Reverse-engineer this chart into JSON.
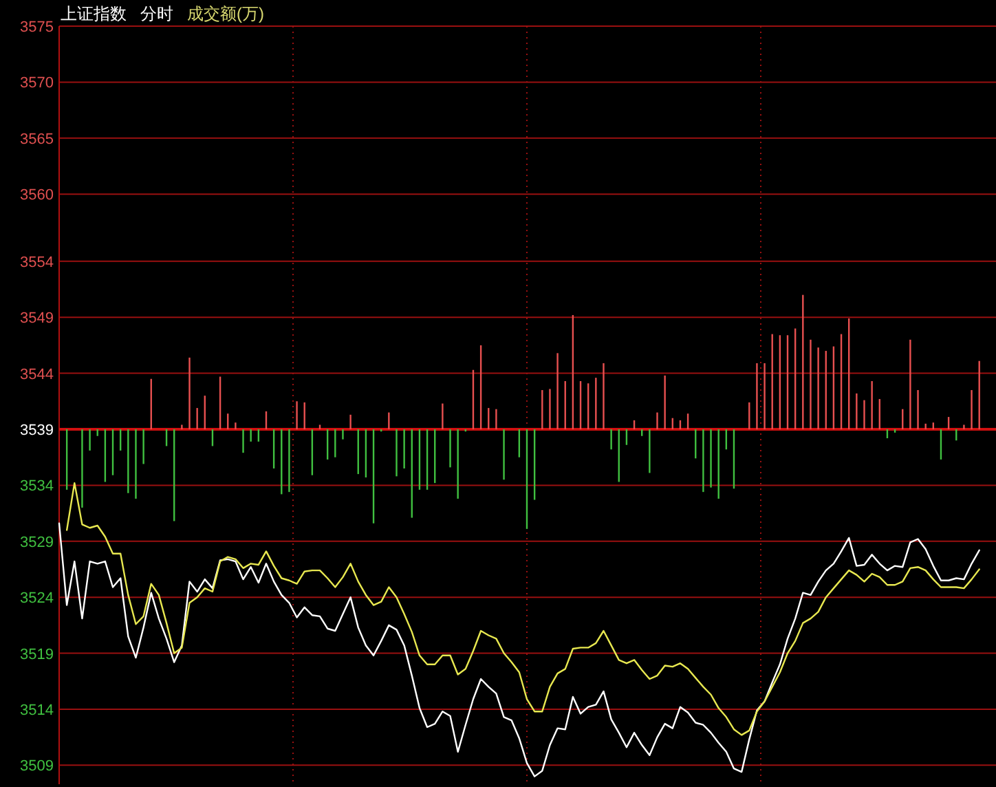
{
  "chart_data": {
    "type": "line",
    "title": "上证指数",
    "subtitle": "分时",
    "annotations": [
      "成交额(万)"
    ],
    "categories": [
      null,
      null,
      null,
      null,
      null,
      null,
      null,
      null,
      null,
      null,
      null,
      null,
      null,
      null,
      null,
      null,
      null,
      null,
      null,
      null,
      null,
      null,
      null,
      null,
      null,
      null,
      null,
      null,
      null,
      null,
      null,
      null,
      null,
      null,
      null,
      null,
      null,
      null,
      null,
      null,
      null,
      null,
      null,
      null,
      null,
      null,
      null,
      null,
      null,
      null,
      null,
      null,
      null,
      null,
      null,
      null,
      null,
      null,
      null,
      null,
      null,
      null,
      null,
      null,
      null,
      null,
      null,
      null,
      null,
      null,
      null,
      null,
      null,
      null,
      null,
      null,
      null,
      null,
      null,
      null,
      null,
      null,
      null,
      null,
      null,
      null,
      null,
      null,
      null,
      null,
      null,
      null,
      null,
      null,
      null,
      null,
      null,
      null,
      null,
      null,
      null,
      null,
      null,
      null,
      null,
      null,
      null,
      null,
      null,
      null,
      null,
      null,
      null,
      null,
      null,
      null,
      null,
      null,
      null,
      null,
      null
    ],
    "ylim": [
      3507.3,
      3575
    ],
    "yticks": [
      3509,
      3514,
      3519,
      3524,
      3529,
      3534,
      3539,
      3544,
      3549,
      3554,
      3560,
      3565,
      3570,
      3575
    ],
    "grid": true,
    "ref_lines": [
      {
        "axis": "y",
        "value": 3539,
        "color": "#d01010"
      }
    ],
    "series": [
      {
        "type": "bar",
        "base": [
          null,
          3539,
          null,
          3539,
          3539,
          3539,
          3539,
          3539,
          3539,
          3539,
          3539,
          3539,
          3539,
          null,
          3539,
          3539,
          3539,
          3539,
          3539,
          3539,
          3539,
          3539,
          3539,
          3539,
          3539,
          3539,
          3539,
          3539,
          3539,
          3539,
          3539,
          3539,
          3539,
          3539,
          3539,
          3539,
          3539,
          3539,
          3539,
          3539,
          3539,
          3539,
          3539,
          3539,
          3539,
          3539,
          3539,
          3539,
          3539,
          3539,
          3539,
          3539,
          3539,
          3539,
          3539,
          3539,
          3539,
          3539,
          3539,
          null,
          3539,
          3539,
          3539,
          3539,
          3539,
          3539,
          3539,
          3539,
          3539,
          3539,
          3539,
          3539,
          3539,
          3539,
          3539,
          3539,
          3539,
          3539,
          3539,
          3539,
          3539,
          3539,
          3539,
          3539,
          3539,
          3539,
          3539,
          3539,
          3539,
          null,
          3539,
          3539,
          3539,
          3539,
          3539,
          3539,
          3539,
          3539,
          3539,
          3539,
          3539,
          3539,
          3539,
          3539,
          3539,
          3539,
          3539,
          3539,
          3539,
          3539,
          3539,
          3539,
          3539,
          3539,
          3539,
          3539,
          3539,
          3539,
          3539,
          3539,
          3539
        ],
        "values": [
          null,
          -5.4,
          null,
          -7.0,
          -1.9,
          -0.6,
          -4.7,
          -4.1,
          -1.9,
          -5.7,
          -6.2,
          -3.1,
          4.5,
          null,
          -1.5,
          -8.2,
          0.4,
          6.4,
          1.9,
          3.0,
          -1.5,
          4.7,
          1.4,
          0.6,
          -2.1,
          -1.1,
          -1.1,
          1.6,
          -3.5,
          -5.8,
          -5.6,
          2.5,
          2.4,
          -4.1,
          0.4,
          -2.7,
          -2.5,
          -0.9,
          1.3,
          -4.0,
          -4.3,
          -8.4,
          -0.2,
          1.5,
          -4.2,
          -3.5,
          -7.9,
          -5.4,
          -5.4,
          -4.8,
          2.3,
          -3.4,
          -6.2,
          -0.2,
          5.3,
          7.5,
          1.9,
          1.8,
          -4.5,
          null,
          -2.5,
          -8.9,
          -6.3,
          3.5,
          3.6,
          6.8,
          4.3,
          10.2,
          4.3,
          4.1,
          4.6,
          5.9,
          -1.8,
          -4.7,
          -1.4,
          0.8,
          -0.6,
          -3.9,
          1.5,
          4.8,
          1.0,
          0.8,
          1.4,
          -2.6,
          -5.6,
          -5.2,
          -6.2,
          -1.8,
          -5.3,
          null,
          2.4,
          5.9,
          5.9,
          8.5,
          8.4,
          8.4,
          9.0,
          12.0,
          8.0,
          7.3,
          7.0,
          7.4,
          8.5,
          9.9,
          3.2,
          2.6,
          4.3,
          2.7,
          -0.8,
          -0.3,
          1.8,
          8.0,
          3.5,
          0.5,
          0.6,
          -2.7,
          1.1,
          -1.0,
          0.4,
          3.5,
          6.1
        ],
        "colors": [
          null,
          "#40c040",
          null,
          "#40c040",
          "#40c040",
          "#40c040",
          "#40c040",
          "#40c040",
          "#40c040",
          "#40c040",
          "#40c040",
          "#40c040",
          "#e85050",
          null,
          "#40c040",
          "#40c040",
          "#e85050",
          "#e85050",
          "#e85050",
          "#e85050",
          "#40c040",
          "#e85050",
          "#e85050",
          "#e85050",
          "#40c040",
          "#40c040",
          "#40c040",
          "#e85050",
          "#40c040",
          "#40c040",
          "#40c040",
          "#e85050",
          "#e85050",
          "#40c040",
          "#e85050",
          "#40c040",
          "#40c040",
          "#40c040",
          "#e85050",
          "#40c040",
          "#40c040",
          "#40c040",
          "#40c040",
          "#e85050",
          "#40c040",
          "#40c040",
          "#40c040",
          "#40c040",
          "#40c040",
          "#40c040",
          "#e85050",
          "#40c040",
          "#40c040",
          "#40c040",
          "#e85050",
          "#e85050",
          "#e85050",
          "#e85050",
          "#40c040",
          null,
          "#40c040",
          "#40c040",
          "#40c040",
          "#e85050",
          "#e85050",
          "#e85050",
          "#e85050",
          "#e85050",
          "#e85050",
          "#e85050",
          "#e85050",
          "#e85050",
          "#40c040",
          "#40c040",
          "#40c040",
          "#e85050",
          "#40c040",
          "#40c040",
          "#e85050",
          "#e85050",
          "#e85050",
          "#e85050",
          "#e85050",
          "#40c040",
          "#40c040",
          "#40c040",
          "#40c040",
          "#40c040",
          "#40c040",
          null,
          "#e85050",
          "#e85050",
          "#e85050",
          "#e85050",
          "#e85050",
          "#e85050",
          "#e85050",
          "#e85050",
          "#e85050",
          "#e85050",
          "#e85050",
          "#e85050",
          "#e85050",
          "#e85050",
          "#e85050",
          "#e85050",
          "#e85050",
          "#e85050",
          "#40c040",
          "#40c040",
          "#e85050",
          "#e85050",
          "#e85050",
          "#e85050",
          "#e85050",
          "#40c040",
          "#e85050",
          "#40c040",
          "#e85050",
          "#e85050",
          "#e85050"
        ]
      },
      {
        "color": "#ffffff",
        "values": [
          3530.6,
          3523.3,
          3527.2,
          3522.1,
          3527.2,
          3527.0,
          3527.2,
          3524.9,
          3525.7,
          3520.5,
          3518.6,
          3521.3,
          3524.4,
          3522.1,
          3520.3,
          3518.2,
          3519.7,
          3525.4,
          3524.5,
          3525.6,
          3524.8,
          3527.3,
          3527.4,
          3527.2,
          3525.6,
          3526.7,
          3525.3,
          3527.0,
          3525.4,
          3524.2,
          3523.5,
          3522.2,
          3523.1,
          3522.4,
          3522.3,
          3521.2,
          3521.0,
          3522.5,
          3524.0,
          3521.3,
          3519.7,
          3518.8,
          3520.1,
          3521.5,
          3521.1,
          3519.7,
          3517.0,
          3514.1,
          3512.4,
          3512.7,
          3513.8,
          3513.4,
          3510.2,
          3512.6,
          3514.9,
          3516.7,
          3516.0,
          3515.4,
          3513.3,
          3513.0,
          3511.4,
          3509.2,
          3508.0,
          3508.5,
          3510.8,
          3512.3,
          3512.2,
          3515.1,
          3513.6,
          3514.2,
          3514.4,
          3515.6,
          3513.1,
          3511.9,
          3510.6,
          3511.9,
          3510.8,
          3509.9,
          3511.5,
          3512.7,
          3512.3,
          3514.2,
          3513.7,
          3512.8,
          3512.6,
          3511.9,
          3511.0,
          3510.2,
          3508.7,
          3508.4,
          3511.3,
          3513.9,
          3514.7,
          3516.4,
          3518.0,
          3520.3,
          3522.1,
          3524.4,
          3524.2,
          3525.4,
          3526.4,
          3527.0,
          3528.1,
          3529.3,
          3526.8,
          3526.9,
          3527.8,
          3527.0,
          3526.4,
          3526.8,
          3526.7,
          3528.9,
          3529.2,
          3528.3,
          3526.8,
          3525.5,
          3525.5,
          3525.7,
          3525.6,
          3527.0,
          3528.2
        ]
      },
      {
        "color": "#e8e850",
        "values": [
          null,
          3530.0,
          3534.2,
          3530.5,
          3530.2,
          3530.4,
          3529.4,
          3527.9,
          3527.9,
          3524.2,
          3521.6,
          3522.3,
          3525.2,
          3524.2,
          3521.7,
          3519.0,
          3519.5,
          3523.5,
          3524.0,
          3524.8,
          3524.5,
          3527.2,
          3527.6,
          3527.4,
          3526.6,
          3527.0,
          3526.9,
          3528.1,
          3526.8,
          3525.7,
          3525.5,
          3525.2,
          3526.3,
          3526.4,
          3526.4,
          3525.7,
          3524.9,
          3525.8,
          3527.0,
          3525.4,
          3524.2,
          3523.3,
          3523.6,
          3524.9,
          3524.0,
          3522.5,
          3520.9,
          3518.8,
          3518.0,
          3518.0,
          3518.8,
          3518.8,
          3517.1,
          3517.6,
          3519.2,
          3521.0,
          3520.6,
          3520.3,
          3519.0,
          3518.2,
          3517.3,
          3514.9,
          3513.8,
          3513.8,
          3516.0,
          3517.2,
          3517.6,
          3519.4,
          3519.5,
          3519.5,
          3519.9,
          3521.0,
          3519.7,
          3518.4,
          3518.1,
          3518.4,
          3517.5,
          3516.7,
          3517.0,
          3517.9,
          3517.8,
          3518.1,
          3517.6,
          3516.8,
          3516.0,
          3515.3,
          3514.1,
          3513.3,
          3512.2,
          3511.7,
          3512.1,
          3513.8,
          3514.7,
          3516.0,
          3517.3,
          3519.0,
          3520.1,
          3521.7,
          3522.1,
          3522.7,
          3524.0,
          3524.8,
          3525.6,
          3526.4,
          3526.0,
          3525.4,
          3526.1,
          3525.8,
          3525.1,
          3525.1,
          3525.4,
          3526.6,
          3526.7,
          3526.4,
          3525.6,
          3524.9,
          3524.9,
          3524.9,
          3524.8,
          3525.6,
          3526.5
        ]
      }
    ]
  }
}
